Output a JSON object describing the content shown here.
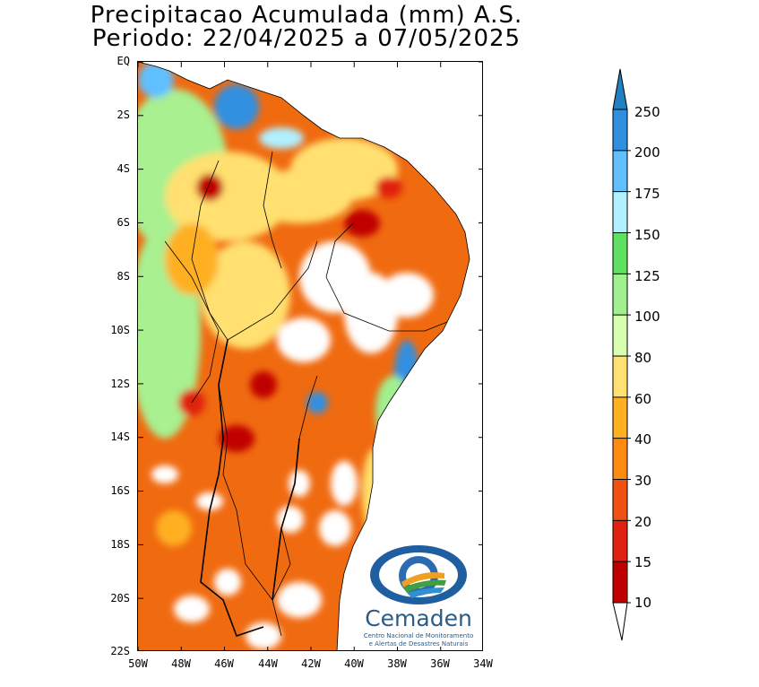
{
  "title": {
    "line1": "Precipitacao Acumulada (mm) A.S.",
    "line2": "Periodo: 22/04/2025 a 07/05/2025"
  },
  "map": {
    "lat_labels": [
      "EQ",
      "2S",
      "4S",
      "6S",
      "8S",
      "10S",
      "12S",
      "14S",
      "16S",
      "18S",
      "20S",
      "22S"
    ],
    "lon_labels": [
      "50W",
      "48W",
      "46W",
      "44W",
      "42W",
      "40W",
      "38W",
      "36W",
      "34W"
    ]
  },
  "colorbar": {
    "levels": [
      "10",
      "15",
      "20",
      "30",
      "40",
      "60",
      "80",
      "100",
      "125",
      "150",
      "175",
      "200",
      "250"
    ],
    "colors": [
      "#c00000",
      "#e02010",
      "#f05010",
      "#ff8a10",
      "#ffb020",
      "#ffe070",
      "#d8ffb0",
      "#a0f090",
      "#60e060",
      "#30c040",
      "#b0f0ff",
      "#60c0ff",
      "#3090e0",
      "#2070c0",
      "#1080c0"
    ]
  },
  "logo": {
    "name": "Cemaden",
    "subtitle_line1": "Centro Nacional de Monitoramento",
    "subtitle_line2": "e Alertas de Desastres Naturais"
  }
}
